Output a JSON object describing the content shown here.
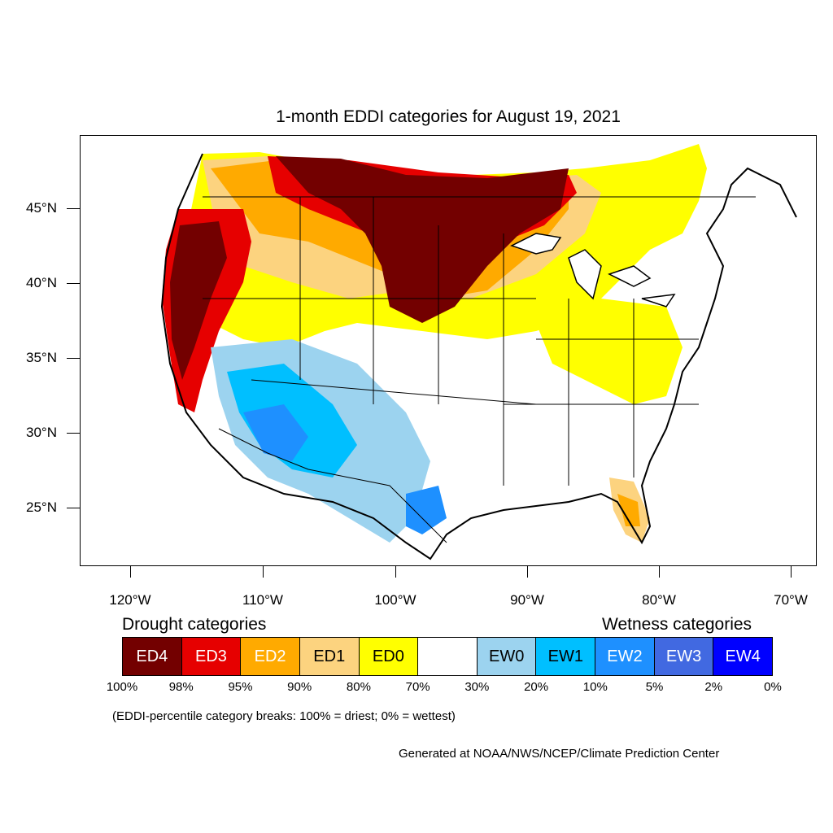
{
  "title": "1-month EDDI categories for August 19, 2021",
  "lat_labels": [
    "45°N",
    "40°N",
    "35°N",
    "30°N",
    "25°N"
  ],
  "lon_labels": [
    "120°W",
    "110°W",
    "100°W",
    "90°W",
    "80°W",
    "70°W"
  ],
  "legend": {
    "drought_heading": "Drought categories",
    "wetness_heading": "Wetness categories",
    "categories": [
      {
        "label": "ED4",
        "color": "#730000",
        "text_color": "#ffffff"
      },
      {
        "label": "ED3",
        "color": "#e60000",
        "text_color": "#ffffff"
      },
      {
        "label": "ED2",
        "color": "#ffaa00",
        "text_color": "#ffffff"
      },
      {
        "label": "ED1",
        "color": "#fcd37f",
        "text_color": "#000000"
      },
      {
        "label": "ED0",
        "color": "#ffff00",
        "text_color": "#000000"
      },
      {
        "label": "",
        "color": "#ffffff",
        "text_color": "#000000"
      },
      {
        "label": "EW0",
        "color": "#9cd3ef",
        "text_color": "#000000"
      },
      {
        "label": "EW1",
        "color": "#00bfff",
        "text_color": "#000000"
      },
      {
        "label": "EW2",
        "color": "#1e90ff",
        "text_color": "#ffffff"
      },
      {
        "label": "EW3",
        "color": "#4169e1",
        "text_color": "#ffffff"
      },
      {
        "label": "EW4",
        "color": "#0000ff",
        "text_color": "#ffffff"
      }
    ],
    "breaks": [
      "100%",
      "98%",
      "95%",
      "90%",
      "80%",
      "70%",
      "30%",
      "20%",
      "10%",
      "5%",
      "2%",
      "0%"
    ]
  },
  "note": "(EDDI-percentile category breaks: 100% = driest; 0% = wettest)",
  "credit": "Generated at NOAA/NWS/NCEP/Climate Prediction Center"
}
